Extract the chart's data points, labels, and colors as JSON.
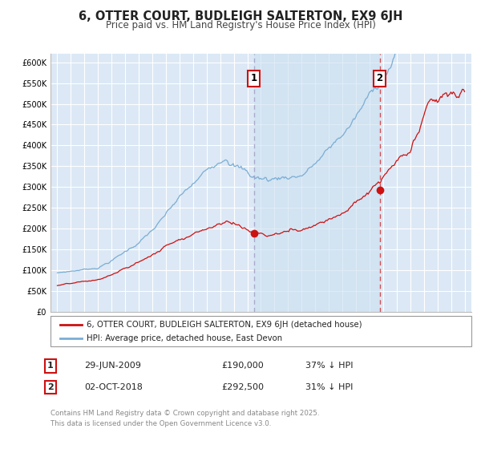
{
  "title": "6, OTTER COURT, BUDLEIGH SALTERTON, EX9 6JH",
  "subtitle": "Price paid vs. HM Land Registry's House Price Index (HPI)",
  "background_color": "#ffffff",
  "plot_background_color": "#dce8f5",
  "grid_color": "#ffffff",
  "hpi_color": "#7aadd4",
  "property_color": "#cc1111",
  "marker1_date_x": 2009.49,
  "marker2_date_x": 2018.75,
  "marker1_price": 190000,
  "marker2_price": 292500,
  "ylim_max": 620000,
  "ylim_min": 0,
  "xlim_min": 1994.5,
  "xlim_max": 2025.5,
  "yticks": [
    0,
    50000,
    100000,
    150000,
    200000,
    250000,
    300000,
    350000,
    400000,
    450000,
    500000,
    550000,
    600000
  ],
  "ytick_labels": [
    "£0",
    "£50K",
    "£100K",
    "£150K",
    "£200K",
    "£250K",
    "£300K",
    "£350K",
    "£400K",
    "£450K",
    "£500K",
    "£550K",
    "£600K"
  ],
  "xticks": [
    1995,
    1996,
    1997,
    1998,
    1999,
    2000,
    2001,
    2002,
    2003,
    2004,
    2005,
    2006,
    2007,
    2008,
    2009,
    2010,
    2011,
    2012,
    2013,
    2014,
    2015,
    2016,
    2017,
    2018,
    2019,
    2020,
    2021,
    2022,
    2023,
    2024,
    2025
  ],
  "legend_label_property": "6, OTTER COURT, BUDLEIGH SALTERTON, EX9 6JH (detached house)",
  "legend_label_hpi": "HPI: Average price, detached house, East Devon",
  "footer_text": "Contains HM Land Registry data © Crown copyright and database right 2025.\nThis data is licensed under the Open Government Licence v3.0.",
  "table_row1": [
    "1",
    "29-JUN-2009",
    "£190,000",
    "37% ↓ HPI"
  ],
  "table_row2": [
    "2",
    "02-OCT-2018",
    "£292,500",
    "31% ↓ HPI"
  ]
}
